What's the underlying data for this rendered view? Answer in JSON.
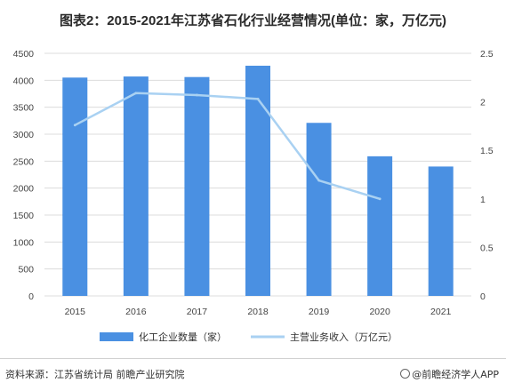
{
  "title": "图表2：2015-2021年江苏省石化行业经营情况(单位：家，万亿元)",
  "source": "资料来源：江苏省统计局 前瞻产业研究院",
  "brand": "@前瞻经济学人APP",
  "colors": {
    "bar": "#4a90e2",
    "line": "#a9d1f2",
    "grid": "#dcdcdc"
  },
  "chart_data": {
    "type": "bar",
    "categories": [
      "2015",
      "2016",
      "2017",
      "2018",
      "2019",
      "2020",
      "2021"
    ],
    "series": [
      {
        "name": "化工企业数量（家）",
        "type": "bar",
        "axis": "left",
        "values": [
          4050,
          4070,
          4060,
          4270,
          3210,
          2590,
          2400
        ]
      },
      {
        "name": "主营业务收入（万亿元）",
        "type": "line",
        "axis": "right",
        "values": [
          1.76,
          2.09,
          2.07,
          2.03,
          1.19,
          1.0,
          null
        ]
      }
    ],
    "y_left": {
      "ylim": [
        0,
        4500
      ],
      "ticks": [
        0,
        500,
        1000,
        1500,
        2000,
        2500,
        3000,
        3500,
        4000,
        4500
      ]
    },
    "y_right": {
      "ylim": [
        0,
        2.5
      ],
      "ticks": [
        "0",
        "0.5",
        "1",
        "1.5",
        "2",
        "2.5"
      ]
    },
    "grid": true,
    "legend_position": "bottom"
  }
}
